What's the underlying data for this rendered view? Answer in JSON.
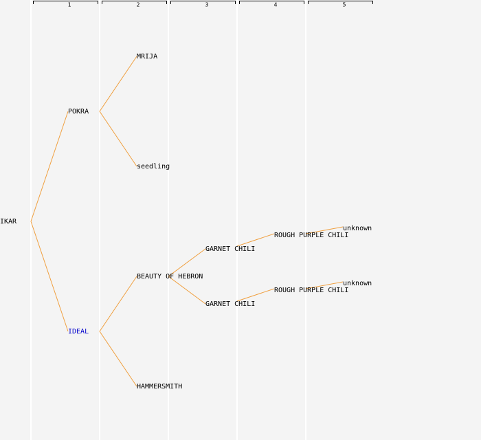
{
  "header": {
    "columns": [
      "1",
      "2",
      "3",
      "4",
      "5"
    ]
  },
  "nodes": [
    {
      "label": "IKAR"
    },
    {
      "label": "POKRA"
    },
    {
      "label": "IDEAL"
    },
    {
      "label": "MRIJA"
    },
    {
      "label": "seedling"
    },
    {
      "label": "BEAUTY OF HEBRON"
    },
    {
      "label": "HAMMERSMITH"
    },
    {
      "label": "GARNET CHILI"
    },
    {
      "label": "GARNET CHILI"
    },
    {
      "label": "ROUGH PURPLE CHILI"
    },
    {
      "label": "ROUGH PURPLE CHILI"
    },
    {
      "label": "unknown"
    },
    {
      "label": "unknown"
    }
  ]
}
